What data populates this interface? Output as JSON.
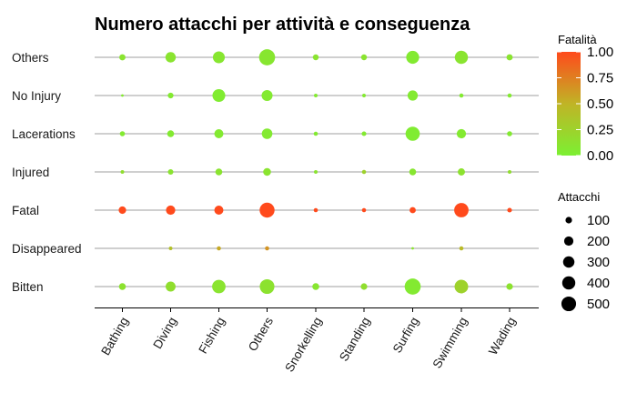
{
  "chart_data": {
    "type": "bubble",
    "title": "Numero attacchi per attività e conseguenza",
    "x_categories": [
      "Bathing",
      "Diving",
      "Fishing",
      "Others",
      "Snorkelling",
      "Standing",
      "Surfing",
      "Swimming",
      "Wading"
    ],
    "y_categories": [
      "Bitten",
      "Disappeared",
      "Fatal",
      "Injured",
      "Lacerations",
      "No Injury",
      "Others"
    ],
    "color_legend": {
      "title": "Fatalità",
      "ticks": [
        "0.00",
        "0.25",
        "0.50",
        "0.75",
        "1.00"
      ],
      "range": [
        0,
        1
      ],
      "low_color": "#7cf032",
      "high_color": "#ff4a1c"
    },
    "size_legend": {
      "title": "Attacchi",
      "values": [
        100,
        200,
        300,
        400,
        500
      ],
      "labels": [
        "100",
        "200",
        "300",
        "400",
        "500"
      ]
    },
    "grid": "horizontal",
    "points": [
      {
        "x": "Bathing",
        "y": "Others",
        "attacks": 90,
        "fatality": 0.1
      },
      {
        "x": "Diving",
        "y": "Others",
        "attacks": 250,
        "fatality": 0.1
      },
      {
        "x": "Fishing",
        "y": "Others",
        "attacks": 330,
        "fatality": 0.08
      },
      {
        "x": "Others",
        "y": "Others",
        "attacks": 600,
        "fatality": 0.08
      },
      {
        "x": "Snorkelling",
        "y": "Others",
        "attacks": 80,
        "fatality": 0.1
      },
      {
        "x": "Standing",
        "y": "Others",
        "attacks": 80,
        "fatality": 0.1
      },
      {
        "x": "Surfing",
        "y": "Others",
        "attacks": 390,
        "fatality": 0.05
      },
      {
        "x": "Swimming",
        "y": "Others",
        "attacks": 400,
        "fatality": 0.1
      },
      {
        "x": "Wading",
        "y": "Others",
        "attacks": 90,
        "fatality": 0.1
      },
      {
        "x": "Bathing",
        "y": "No Injury",
        "attacks": 15,
        "fatality": 0.05
      },
      {
        "x": "Diving",
        "y": "No Injury",
        "attacks": 75,
        "fatality": 0.05
      },
      {
        "x": "Fishing",
        "y": "No Injury",
        "attacks": 380,
        "fatality": 0.03
      },
      {
        "x": "Others",
        "y": "No Injury",
        "attacks": 280,
        "fatality": 0.05
      },
      {
        "x": "Snorkelling",
        "y": "No Injury",
        "attacks": 30,
        "fatality": 0.05
      },
      {
        "x": "Standing",
        "y": "No Injury",
        "attacks": 30,
        "fatality": 0.05
      },
      {
        "x": "Surfing",
        "y": "No Injury",
        "attacks": 240,
        "fatality": 0.05
      },
      {
        "x": "Swimming",
        "y": "No Injury",
        "attacks": 40,
        "fatality": 0.05
      },
      {
        "x": "Wading",
        "y": "No Injury",
        "attacks": 40,
        "fatality": 0.05
      },
      {
        "x": "Bathing",
        "y": "Lacerations",
        "attacks": 60,
        "fatality": 0.05
      },
      {
        "x": "Diving",
        "y": "Lacerations",
        "attacks": 110,
        "fatality": 0.05
      },
      {
        "x": "Fishing",
        "y": "Lacerations",
        "attacks": 190,
        "fatality": 0.05
      },
      {
        "x": "Others",
        "y": "Lacerations",
        "attacks": 260,
        "fatality": 0.05
      },
      {
        "x": "Snorkelling",
        "y": "Lacerations",
        "attacks": 40,
        "fatality": 0.05
      },
      {
        "x": "Standing",
        "y": "Lacerations",
        "attacks": 50,
        "fatality": 0.05
      },
      {
        "x": "Surfing",
        "y": "Lacerations",
        "attacks": 470,
        "fatality": 0.03
      },
      {
        "x": "Swimming",
        "y": "Lacerations",
        "attacks": 200,
        "fatality": 0.05
      },
      {
        "x": "Wading",
        "y": "Lacerations",
        "attacks": 60,
        "fatality": 0.05
      },
      {
        "x": "Bathing",
        "y": "Injured",
        "attacks": 30,
        "fatality": 0.15
      },
      {
        "x": "Diving",
        "y": "Injured",
        "attacks": 70,
        "fatality": 0.1
      },
      {
        "x": "Fishing",
        "y": "Injured",
        "attacks": 110,
        "fatality": 0.1
      },
      {
        "x": "Others",
        "y": "Injured",
        "attacks": 140,
        "fatality": 0.1
      },
      {
        "x": "Snorkelling",
        "y": "Injured",
        "attacks": 30,
        "fatality": 0.1
      },
      {
        "x": "Standing",
        "y": "Injured",
        "attacks": 40,
        "fatality": 0.25
      },
      {
        "x": "Surfing",
        "y": "Injured",
        "attacks": 110,
        "fatality": 0.08
      },
      {
        "x": "Swimming",
        "y": "Injured",
        "attacks": 120,
        "fatality": 0.12
      },
      {
        "x": "Wading",
        "y": "Injured",
        "attacks": 30,
        "fatality": 0.15
      },
      {
        "x": "Bathing",
        "y": "Fatal",
        "attacks": 130,
        "fatality": 1.0
      },
      {
        "x": "Diving",
        "y": "Fatal",
        "attacks": 200,
        "fatality": 1.0
      },
      {
        "x": "Fishing",
        "y": "Fatal",
        "attacks": 190,
        "fatality": 1.0
      },
      {
        "x": "Others",
        "y": "Fatal",
        "attacks": 520,
        "fatality": 1.0
      },
      {
        "x": "Snorkelling",
        "y": "Fatal",
        "attacks": 40,
        "fatality": 1.0
      },
      {
        "x": "Standing",
        "y": "Fatal",
        "attacks": 40,
        "fatality": 1.0
      },
      {
        "x": "Surfing",
        "y": "Fatal",
        "attacks": 90,
        "fatality": 1.0
      },
      {
        "x": "Swimming",
        "y": "Fatal",
        "attacks": 480,
        "fatality": 1.0
      },
      {
        "x": "Wading",
        "y": "Fatal",
        "attacks": 50,
        "fatality": 1.0
      },
      {
        "x": "Diving",
        "y": "Disappeared",
        "attacks": 30,
        "fatality": 0.4
      },
      {
        "x": "Fishing",
        "y": "Disappeared",
        "attacks": 40,
        "fatality": 0.55
      },
      {
        "x": "Others",
        "y": "Disappeared",
        "attacks": 40,
        "fatality": 0.65
      },
      {
        "x": "Surfing",
        "y": "Disappeared",
        "attacks": 15,
        "fatality": 0.1
      },
      {
        "x": "Swimming",
        "y": "Disappeared",
        "attacks": 40,
        "fatality": 0.45
      },
      {
        "x": "Bathing",
        "y": "Bitten",
        "attacks": 110,
        "fatality": 0.12
      },
      {
        "x": "Diving",
        "y": "Bitten",
        "attacks": 230,
        "fatality": 0.15
      },
      {
        "x": "Fishing",
        "y": "Bitten",
        "attacks": 420,
        "fatality": 0.1
      },
      {
        "x": "Others",
        "y": "Bitten",
        "attacks": 500,
        "fatality": 0.12
      },
      {
        "x": "Snorkelling",
        "y": "Bitten",
        "attacks": 110,
        "fatality": 0.08
      },
      {
        "x": "Standing",
        "y": "Bitten",
        "attacks": 100,
        "fatality": 0.15
      },
      {
        "x": "Surfing",
        "y": "Bitten",
        "attacks": 600,
        "fatality": 0.05
      },
      {
        "x": "Swimming",
        "y": "Bitten",
        "attacks": 430,
        "fatality": 0.25
      },
      {
        "x": "Wading",
        "y": "Bitten",
        "attacks": 100,
        "fatality": 0.12
      }
    ]
  }
}
